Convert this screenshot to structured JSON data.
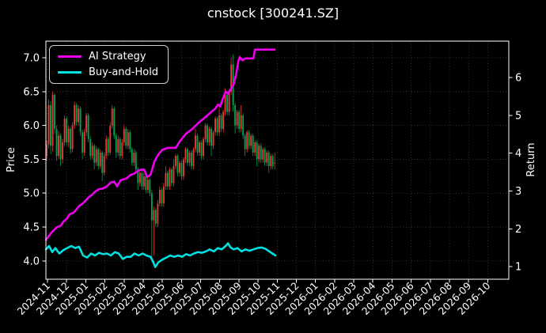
{
  "title": "cnstock [300241.SZ]",
  "left_axis": {
    "label": "Price",
    "ticks": [
      "7.0",
      "6.5",
      "6.0",
      "5.5",
      "5.0",
      "4.5",
      "4.0"
    ]
  },
  "right_axis": {
    "label": "Return",
    "ticks": [
      "6",
      "5",
      "4",
      "3",
      "2",
      "1"
    ]
  },
  "x_axis": {
    "ticks": [
      "2024-11",
      "2024-12",
      "2025-01",
      "2025-02",
      "2025-03",
      "2025-04",
      "2025-05",
      "2025-06",
      "2025-07",
      "2025-08",
      "2025-09",
      "2025-10",
      "2025-11",
      "2025-12",
      "2026-01",
      "2026-02",
      "2026-03",
      "2026-04",
      "2026-05",
      "2026-06",
      "2026-07",
      "2026-08",
      "2026-09",
      "2026-10"
    ]
  },
  "legend": {
    "items": [
      {
        "label": "AI Strategy",
        "color": "#ee00ee"
      },
      {
        "label": "Buy-and-Hold",
        "color": "#00e1e1"
      }
    ]
  },
  "colors": {
    "background": "#000000",
    "frame": "#ffffff",
    "grid": "#3f3f3f",
    "text": "#ffffff",
    "candle_up": "#e83a30",
    "candle_down": "#00a152",
    "ai_line": "#ee00ee",
    "bah_line": "#00e1e1"
  },
  "chart_data": {
    "type": "candlestick_with_lines",
    "title": "cnstock [300241.SZ]",
    "grid": true,
    "legend_position": "upper left",
    "price_ylim": [
      3.73,
      7.245
    ],
    "return_ylim": [
      0.67,
      6.96
    ],
    "x_range_months": [
      -0.083,
      24.1
    ],
    "candle_convention": "red-up green-down",
    "series": [
      {
        "name": "AI Strategy",
        "axis": "price",
        "color": "#ee00ee",
        "points": [
          [
            -0.08,
            4.31
          ],
          [
            0.21,
            4.42
          ],
          [
            0.5,
            4.5
          ],
          [
            0.7,
            4.52
          ],
          [
            0.83,
            4.58
          ],
          [
            1.0,
            4.62
          ],
          [
            1.16,
            4.69
          ],
          [
            1.35,
            4.71
          ],
          [
            1.45,
            4.74
          ],
          [
            1.65,
            4.81
          ],
          [
            1.85,
            4.85
          ],
          [
            1.99,
            4.89
          ],
          [
            2.15,
            4.94
          ],
          [
            2.3,
            4.97
          ],
          [
            2.48,
            5.02
          ],
          [
            2.69,
            5.06
          ],
          [
            2.9,
            5.07
          ],
          [
            3.1,
            5.1
          ],
          [
            3.31,
            5.16
          ],
          [
            3.48,
            5.17
          ],
          [
            3.64,
            5.1
          ],
          [
            3.81,
            5.19
          ],
          [
            3.93,
            5.2
          ],
          [
            4.14,
            5.22
          ],
          [
            4.34,
            5.27
          ],
          [
            4.55,
            5.29
          ],
          [
            4.76,
            5.34
          ],
          [
            4.97,
            5.35
          ],
          [
            5.05,
            5.35
          ],
          [
            5.21,
            5.24
          ],
          [
            5.38,
            5.27
          ],
          [
            5.59,
            5.47
          ],
          [
            5.79,
            5.57
          ],
          [
            6.0,
            5.64
          ],
          [
            6.29,
            5.67
          ],
          [
            6.5,
            5.67
          ],
          [
            6.7,
            5.67
          ],
          [
            6.95,
            5.78
          ],
          [
            7.24,
            5.88
          ],
          [
            7.53,
            5.94
          ],
          [
            7.86,
            6.03
          ],
          [
            8.19,
            6.11
          ],
          [
            8.4,
            6.16
          ],
          [
            8.6,
            6.21
          ],
          [
            8.77,
            6.25
          ],
          [
            8.9,
            6.31
          ],
          [
            9.02,
            6.28
          ],
          [
            9.14,
            6.38
          ],
          [
            9.31,
            6.5
          ],
          [
            9.43,
            6.47
          ],
          [
            9.6,
            6.55
          ],
          [
            9.72,
            6.6
          ],
          [
            9.85,
            6.75
          ],
          [
            9.97,
            6.95
          ],
          [
            10.05,
            7.01
          ],
          [
            10.18,
            6.96
          ],
          [
            10.34,
            6.99
          ],
          [
            10.55,
            6.99
          ],
          [
            10.76,
            6.99
          ],
          [
            10.84,
            7.12
          ],
          [
            11.87,
            7.12
          ]
        ]
      },
      {
        "name": "Buy-and-Hold",
        "axis": "price",
        "color": "#00e1e1",
        "points": [
          [
            -0.08,
            4.17
          ],
          [
            0.08,
            4.22
          ],
          [
            0.25,
            4.13
          ],
          [
            0.41,
            4.19
          ],
          [
            0.62,
            4.11
          ],
          [
            0.83,
            4.16
          ],
          [
            1.03,
            4.19
          ],
          [
            1.24,
            4.22
          ],
          [
            1.45,
            4.19
          ],
          [
            1.65,
            4.21
          ],
          [
            1.86,
            4.08
          ],
          [
            2.07,
            4.05
          ],
          [
            2.28,
            4.11
          ],
          [
            2.48,
            4.08
          ],
          [
            2.69,
            4.12
          ],
          [
            2.9,
            4.1
          ],
          [
            3.1,
            4.11
          ],
          [
            3.31,
            4.08
          ],
          [
            3.52,
            4.13
          ],
          [
            3.72,
            4.11
          ],
          [
            3.93,
            4.03
          ],
          [
            4.14,
            4.06
          ],
          [
            4.34,
            4.06
          ],
          [
            4.55,
            4.11
          ],
          [
            4.76,
            4.08
          ],
          [
            4.97,
            4.11
          ],
          [
            5.17,
            4.08
          ],
          [
            5.38,
            4.06
          ],
          [
            5.5,
            4.0
          ],
          [
            5.63,
            3.91
          ],
          [
            5.79,
            3.98
          ],
          [
            6.0,
            4.02
          ],
          [
            6.21,
            4.05
          ],
          [
            6.41,
            4.08
          ],
          [
            6.62,
            4.06
          ],
          [
            6.83,
            4.08
          ],
          [
            7.03,
            4.06
          ],
          [
            7.24,
            4.1
          ],
          [
            7.45,
            4.08
          ],
          [
            7.65,
            4.11
          ],
          [
            7.86,
            4.13
          ],
          [
            8.07,
            4.12
          ],
          [
            8.27,
            4.14
          ],
          [
            8.48,
            4.17
          ],
          [
            8.69,
            4.14
          ],
          [
            8.9,
            4.19
          ],
          [
            9.1,
            4.17
          ],
          [
            9.31,
            4.22
          ],
          [
            9.43,
            4.26
          ],
          [
            9.56,
            4.2
          ],
          [
            9.72,
            4.17
          ],
          [
            9.93,
            4.19
          ],
          [
            10.14,
            4.14
          ],
          [
            10.34,
            4.17
          ],
          [
            10.55,
            4.15
          ],
          [
            10.76,
            4.17
          ],
          [
            10.97,
            4.19
          ],
          [
            11.17,
            4.2
          ],
          [
            11.38,
            4.18
          ],
          [
            11.59,
            4.14
          ],
          [
            11.75,
            4.11
          ],
          [
            11.91,
            4.08
          ]
        ]
      }
    ],
    "candles": {
      "axis": "price",
      "t0": -0.04,
      "t_step": 0.1036,
      "ohlc": [
        [
          5.55,
          5.78,
          5.48,
          5.72
        ],
        [
          5.72,
          6.38,
          5.66,
          6.3
        ],
        [
          6.3,
          6.36,
          5.58,
          5.7
        ],
        [
          5.7,
          6.5,
          5.62,
          6.45
        ],
        [
          6.45,
          6.48,
          5.88,
          5.95
        ],
        [
          5.95,
          6.0,
          5.48,
          5.55
        ],
        [
          5.55,
          5.92,
          5.5,
          5.85
        ],
        [
          5.85,
          5.88,
          5.4,
          5.5
        ],
        [
          5.5,
          5.8,
          5.44,
          5.75
        ],
        [
          5.75,
          6.15,
          5.7,
          6.1
        ],
        [
          6.1,
          6.14,
          5.7,
          5.75
        ],
        [
          5.75,
          6.0,
          5.68,
          5.95
        ],
        [
          5.95,
          5.98,
          5.58,
          5.65
        ],
        [
          5.65,
          6.05,
          5.6,
          6.0
        ],
        [
          6.0,
          6.35,
          5.95,
          6.3
        ],
        [
          6.3,
          6.33,
          6.0,
          6.05
        ],
        [
          6.05,
          6.3,
          6.0,
          6.25
        ],
        [
          6.25,
          6.28,
          5.85,
          5.9
        ],
        [
          5.9,
          5.94,
          5.5,
          5.6
        ],
        [
          5.6,
          5.95,
          5.55,
          5.9
        ],
        [
          5.9,
          6.18,
          5.85,
          6.15
        ],
        [
          6.15,
          6.18,
          5.75,
          5.8
        ],
        [
          5.8,
          5.84,
          5.5,
          5.55
        ],
        [
          5.55,
          5.75,
          5.5,
          5.7
        ],
        [
          5.7,
          5.73,
          5.35,
          5.45
        ],
        [
          5.45,
          5.7,
          5.4,
          5.65
        ],
        [
          5.65,
          5.68,
          5.35,
          5.4
        ],
        [
          5.4,
          5.65,
          5.36,
          5.6
        ],
        [
          5.6,
          5.63,
          5.18,
          5.3
        ],
        [
          5.3,
          5.6,
          5.26,
          5.55
        ],
        [
          5.55,
          5.85,
          5.5,
          5.8
        ],
        [
          5.8,
          5.83,
          5.55,
          5.6
        ],
        [
          5.6,
          6.05,
          5.56,
          6.0
        ],
        [
          6.0,
          6.3,
          5.95,
          6.25
        ],
        [
          6.25,
          6.28,
          5.8,
          5.85
        ],
        [
          5.85,
          5.88,
          5.52,
          5.6
        ],
        [
          5.6,
          5.85,
          5.55,
          5.8
        ],
        [
          5.8,
          5.83,
          5.5,
          5.55
        ],
        [
          5.55,
          5.8,
          5.5,
          5.75
        ],
        [
          5.75,
          6.0,
          5.7,
          5.95
        ],
        [
          5.95,
          5.98,
          5.65,
          5.7
        ],
        [
          5.7,
          5.95,
          5.65,
          5.9
        ],
        [
          5.9,
          5.93,
          5.6,
          5.65
        ],
        [
          5.65,
          5.68,
          5.4,
          5.45
        ],
        [
          5.45,
          5.65,
          5.4,
          5.6
        ],
        [
          5.6,
          5.63,
          5.3,
          5.35
        ],
        [
          5.35,
          5.38,
          5.05,
          5.15
        ],
        [
          5.15,
          5.35,
          5.1,
          5.3
        ],
        [
          5.3,
          5.33,
          5.05,
          5.1
        ],
        [
          5.1,
          5.3,
          5.05,
          5.25
        ],
        [
          5.25,
          5.28,
          5.0,
          5.05
        ],
        [
          5.05,
          5.25,
          5.0,
          5.2
        ],
        [
          5.2,
          5.23,
          4.95,
          5.0
        ],
        [
          5.0,
          5.05,
          3.98,
          4.6
        ],
        [
          4.6,
          4.8,
          4.08,
          4.75
        ],
        [
          4.75,
          4.78,
          4.5,
          4.55
        ],
        [
          4.55,
          4.9,
          4.5,
          4.85
        ],
        [
          4.85,
          5.1,
          4.8,
          5.05
        ],
        [
          5.05,
          5.08,
          4.8,
          4.85
        ],
        [
          4.85,
          5.15,
          4.8,
          5.1
        ],
        [
          5.1,
          5.4,
          5.05,
          5.3
        ],
        [
          5.3,
          5.33,
          5.05,
          5.1
        ],
        [
          5.1,
          5.38,
          5.05,
          5.35
        ],
        [
          5.35,
          5.38,
          5.1,
          5.15
        ],
        [
          5.15,
          5.5,
          5.1,
          5.4
        ],
        [
          5.4,
          5.58,
          5.35,
          5.55
        ],
        [
          5.55,
          5.58,
          5.25,
          5.3
        ],
        [
          5.3,
          5.48,
          5.25,
          5.45
        ],
        [
          5.45,
          5.48,
          5.2,
          5.25
        ],
        [
          5.25,
          5.53,
          5.2,
          5.5
        ],
        [
          5.5,
          5.68,
          5.45,
          5.65
        ],
        [
          5.65,
          5.68,
          5.4,
          5.45
        ],
        [
          5.45,
          5.63,
          5.4,
          5.6
        ],
        [
          5.6,
          5.63,
          5.35,
          5.4
        ],
        [
          5.4,
          5.68,
          5.35,
          5.65
        ],
        [
          5.65,
          5.95,
          5.6,
          5.85
        ],
        [
          5.85,
          5.88,
          5.55,
          5.6
        ],
        [
          5.6,
          5.78,
          5.55,
          5.75
        ],
        [
          5.75,
          5.78,
          5.5,
          5.55
        ],
        [
          5.55,
          5.83,
          5.5,
          5.8
        ],
        [
          5.8,
          6.03,
          5.75,
          6.0
        ],
        [
          6.0,
          6.03,
          5.7,
          5.75
        ],
        [
          5.75,
          5.98,
          5.7,
          5.95
        ],
        [
          5.95,
          5.98,
          5.55,
          5.7
        ],
        [
          5.7,
          5.93,
          5.65,
          5.9
        ],
        [
          5.9,
          6.13,
          5.85,
          6.1
        ],
        [
          6.1,
          6.13,
          5.85,
          5.9
        ],
        [
          5.9,
          6.25,
          5.85,
          6.15
        ],
        [
          6.15,
          6.18,
          5.9,
          5.95
        ],
        [
          5.95,
          6.23,
          5.9,
          6.2
        ],
        [
          6.2,
          6.55,
          6.15,
          6.45
        ],
        [
          6.45,
          6.48,
          6.15,
          6.2
        ],
        [
          6.2,
          6.53,
          6.15,
          6.5
        ],
        [
          6.5,
          7.0,
          6.45,
          6.9
        ],
        [
          6.9,
          7.05,
          6.2,
          6.3
        ],
        [
          6.3,
          6.33,
          5.88,
          6.0
        ],
        [
          6.0,
          6.23,
          5.95,
          6.2
        ],
        [
          6.2,
          6.23,
          5.9,
          5.95
        ],
        [
          5.95,
          6.3,
          5.9,
          6.15
        ],
        [
          6.15,
          6.18,
          5.8,
          5.85
        ],
        [
          5.85,
          5.88,
          5.55,
          5.65
        ],
        [
          5.65,
          5.93,
          5.6,
          5.9
        ],
        [
          5.9,
          5.93,
          5.65,
          5.7
        ],
        [
          5.7,
          5.88,
          5.65,
          5.85
        ],
        [
          5.85,
          5.88,
          5.55,
          5.6
        ],
        [
          5.6,
          5.78,
          5.55,
          5.75
        ],
        [
          5.75,
          5.78,
          5.4,
          5.5
        ],
        [
          5.5,
          5.73,
          5.45,
          5.7
        ],
        [
          5.7,
          5.73,
          5.45,
          5.5
        ],
        [
          5.5,
          5.68,
          5.45,
          5.65
        ],
        [
          5.65,
          5.68,
          5.4,
          5.45
        ],
        [
          5.45,
          5.63,
          5.4,
          5.6
        ],
        [
          5.6,
          5.63,
          5.3,
          5.4
        ],
        [
          5.4,
          5.58,
          5.35,
          5.55
        ],
        [
          5.55,
          5.58,
          5.35,
          5.4
        ],
        [
          5.45,
          5.6,
          5.35,
          5.45
        ]
      ]
    }
  }
}
